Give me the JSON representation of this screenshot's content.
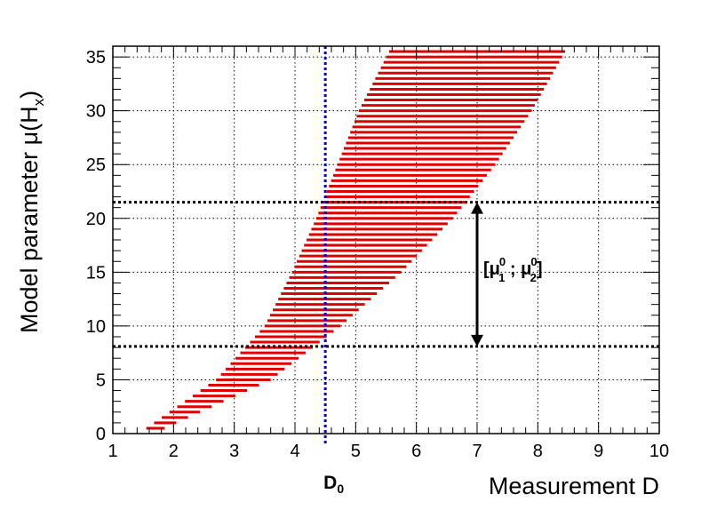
{
  "chart_data": {
    "type": "area",
    "xlabel": "Measurement D",
    "ylabel_main": "Model parameter ",
    "ylabel_mu": "μ(H",
    "ylabel_sub": "x",
    "ylabel_close": ")",
    "xlim": [
      1,
      10
    ],
    "ylim": [
      0,
      36
    ],
    "x_ticks": [
      1,
      2,
      3,
      4,
      5,
      6,
      7,
      8,
      9,
      10
    ],
    "y_ticks": [
      0,
      5,
      10,
      15,
      20,
      25,
      30,
      35
    ],
    "grid": true,
    "band": {
      "color": "#e00000",
      "y_start": 0.5,
      "y_end": 35.5,
      "y_step": 0.5,
      "lower_edge": [
        [
          0.5,
          1.55
        ],
        [
          5,
          2.7
        ],
        [
          10,
          3.5
        ],
        [
          15,
          3.95
        ],
        [
          20,
          4.35
        ],
        [
          25,
          4.7
        ],
        [
          30,
          5.05
        ],
        [
          35.5,
          5.55
        ]
      ],
      "upper_edge": [
        [
          0.5,
          1.85
        ],
        [
          5,
          3.6
        ],
        [
          10,
          4.75
        ],
        [
          15,
          5.75
        ],
        [
          20,
          6.6
        ],
        [
          25,
          7.3
        ],
        [
          30,
          7.9
        ],
        [
          35.5,
          8.45
        ]
      ]
    },
    "d0": {
      "x": 4.5,
      "label": "D",
      "sub": "0",
      "color": "#0000dd"
    },
    "hlines": [
      21.5,
      8.1
    ],
    "interval_arrow": {
      "x": 7.0,
      "y_top": 21.5,
      "y_bottom": 8.1,
      "label_open": "[μ",
      "label_sub1": "1",
      "label_sup1": "0",
      "label_sep": " ; μ",
      "label_sub2": "2",
      "label_sup2": "0",
      "label_close": "]"
    }
  }
}
